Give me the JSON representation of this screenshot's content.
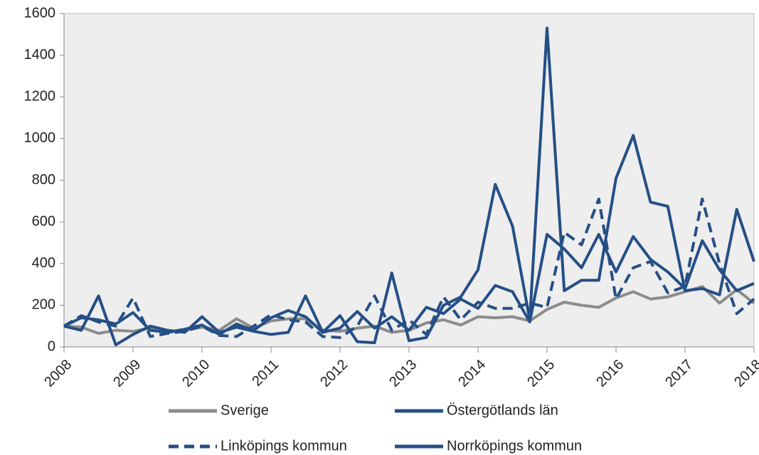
{
  "chart_data": {
    "type": "line",
    "x": [
      2008,
      2008.25,
      2008.5,
      2008.75,
      2009,
      2009.25,
      2009.5,
      2009.75,
      2010,
      2010.25,
      2010.5,
      2010.75,
      2011,
      2011.25,
      2011.5,
      2011.75,
      2012,
      2012.25,
      2012.5,
      2012.75,
      2013,
      2013.25,
      2013.5,
      2013.75,
      2014,
      2014.25,
      2014.5,
      2014.75,
      2015,
      2015.25,
      2015.5,
      2015.75,
      2016,
      2016.25,
      2016.5,
      2016.75,
      2017,
      2017.25,
      2017.5,
      2017.75,
      2018
    ],
    "series": [
      {
        "name": "Sverige",
        "color": "#8c8c8c",
        "dashed": false,
        "values": [
          100,
          95,
          65,
          80,
          75,
          90,
          70,
          80,
          95,
          80,
          135,
          90,
          125,
          135,
          135,
          80,
          75,
          90,
          100,
          70,
          80,
          115,
          130,
          105,
          145,
          140,
          145,
          125,
          180,
          215,
          200,
          190,
          235,
          265,
          230,
          240,
          265,
          290,
          210,
          275,
          210
        ]
      },
      {
        "name": "Östergötlands län",
        "color": "#254f86",
        "dashed": false,
        "values": [
          100,
          140,
          130,
          110,
          165,
          80,
          70,
          85,
          105,
          60,
          110,
          80,
          140,
          175,
          145,
          70,
          90,
          170,
          90,
          145,
          80,
          190,
          160,
          230,
          185,
          295,
          265,
          120,
          540,
          470,
          380,
          540,
          360,
          530,
          420,
          360,
          280,
          510,
          370,
          270,
          305
        ]
      },
      {
        "name": "Linköpings kommun",
        "color": "#254f86",
        "dashed": true,
        "values": [
          100,
          150,
          120,
          100,
          235,
          50,
          65,
          75,
          100,
          55,
          50,
          100,
          155,
          130,
          120,
          50,
          45,
          100,
          245,
          80,
          130,
          60,
          240,
          130,
          215,
          185,
          185,
          210,
          190,
          550,
          490,
          710,
          230,
          380,
          410,
          260,
          290,
          710,
          400,
          160,
          230
        ]
      },
      {
        "name": "Norrköpings kommun",
        "color": "#254f86",
        "dashed": false,
        "values": [
          100,
          80,
          245,
          10,
          60,
          100,
          80,
          70,
          145,
          70,
          95,
          75,
          60,
          70,
          245,
          70,
          150,
          25,
          20,
          355,
          30,
          45,
          200,
          240,
          370,
          780,
          580,
          130,
          1530,
          270,
          320,
          320,
          810,
          1015,
          695,
          675,
          270,
          280,
          250,
          660,
          410
        ]
      }
    ],
    "xlim": [
      2008,
      2018
    ],
    "xticks": [
      2008,
      2009,
      2010,
      2011,
      2012,
      2013,
      2014,
      2015,
      2016,
      2017,
      2018
    ],
    "ylim": [
      0,
      1600
    ],
    "yticks": [
      0,
      200,
      400,
      600,
      800,
      1000,
      1200,
      1400,
      1600
    ]
  }
}
